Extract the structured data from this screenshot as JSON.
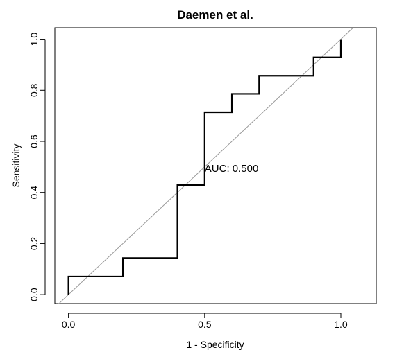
{
  "chart_data": {
    "type": "line",
    "title": "Daemen et al.",
    "xlabel": "1 - Specificity",
    "ylabel": "Sensitivity",
    "xlim": [
      -0.05,
      1.13
    ],
    "ylim": [
      -0.035,
      1.045
    ],
    "x_ticks": [
      {
        "value": 0.0,
        "label": "0.0"
      },
      {
        "value": 0.5,
        "label": "0.5"
      },
      {
        "value": 1.0,
        "label": "1.0"
      }
    ],
    "y_ticks": [
      {
        "value": 0.0,
        "label": "0.0"
      },
      {
        "value": 0.2,
        "label": "0.2"
      },
      {
        "value": 0.4,
        "label": "0.4"
      },
      {
        "value": 0.6,
        "label": "0.6"
      },
      {
        "value": 0.8,
        "label": "0.8"
      },
      {
        "value": 1.0,
        "label": "1.0"
      }
    ],
    "series": [
      {
        "x": [
          0,
          0,
          0.2,
          0.2,
          0.4,
          0.4,
          0.5,
          0.5,
          0.6,
          0.6,
          0.7,
          0.7,
          0.9,
          0.9,
          1.0,
          1.0
        ],
        "y": [
          0,
          0.071,
          0.071,
          0.143,
          0.143,
          0.429,
          0.429,
          0.714,
          0.714,
          0.786,
          0.786,
          0.857,
          0.857,
          0.929,
          0.929,
          1.0
        ],
        "color": "#000000"
      }
    ],
    "reference_line": {
      "from": [
        -0.05,
        -0.05
      ],
      "to": [
        1.05,
        1.05
      ],
      "color": "#999999"
    },
    "annotations": [
      {
        "text": "AUC: 0.500",
        "x": 0.5,
        "y": 0.5
      }
    ],
    "grid": false,
    "legend": "none"
  }
}
